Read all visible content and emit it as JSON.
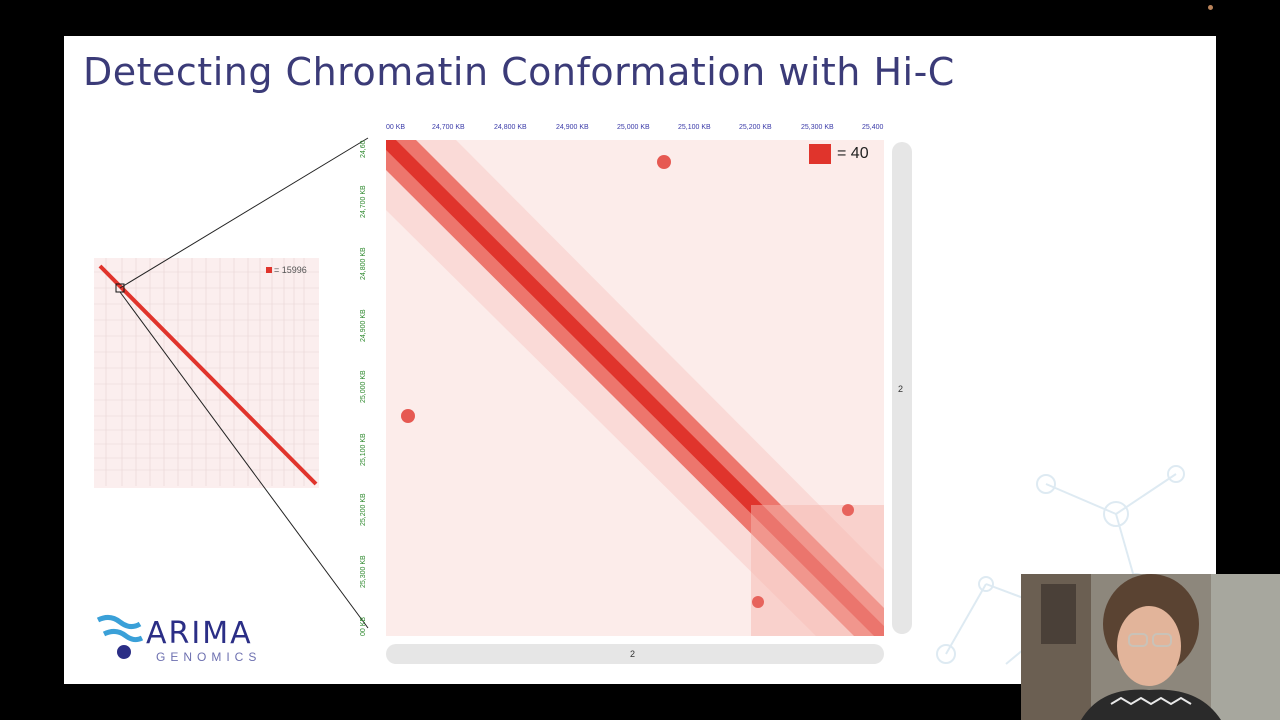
{
  "slide": {
    "title": "Detecting Chromatin Conformation with Hi-C",
    "mini_legend": "= 15996",
    "main_legend": "= 40",
    "x_ticks": [
      "00 KB",
      "24,700 KB",
      "24,800 KB",
      "24,900 KB",
      "25,000 KB",
      "25,100 KB",
      "25,200 KB",
      "25,300 KB",
      "25,400"
    ],
    "y_ticks": [
      "24,60",
      "24,700 KB",
      "24,800 KB",
      "24,900 KB",
      "25,000 KB",
      "25,100 KB",
      "25,200 KB",
      "25,300 KB",
      "00 KB"
    ],
    "scroll_label_v": "2",
    "scroll_label_h": "2",
    "logo_word": "ARIMA",
    "logo_sub": "GENOMICS"
  },
  "colors": {
    "accent": "#e0342c",
    "title": "#3b3b78"
  }
}
